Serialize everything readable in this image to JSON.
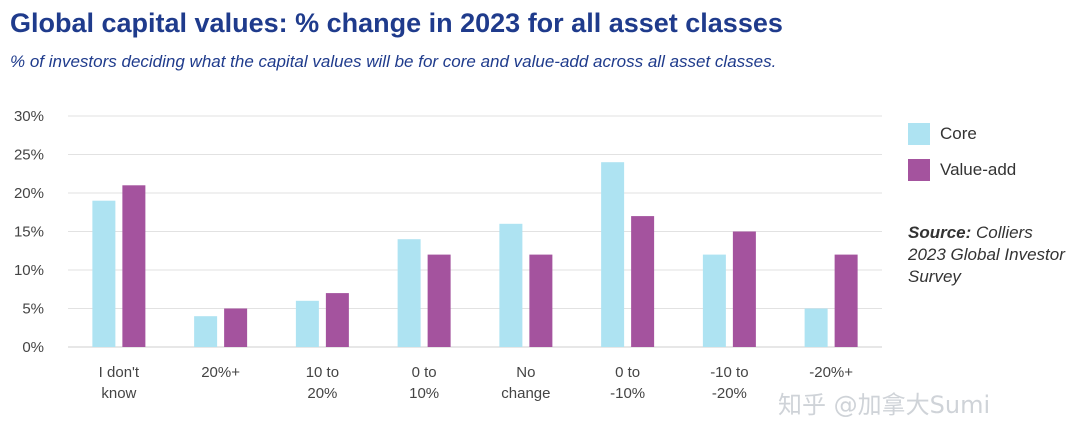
{
  "title": "Global capital values: % change in 2023 for all asset classes",
  "subtitle": "% of investors deciding what the capital values will be for core and value-add across all asset classes.",
  "source": {
    "label": "Source:",
    "text": "Colliers 2023 Global Investor Survey"
  },
  "watermark": "知乎 @加拿大Sumi",
  "colors": {
    "core": "#aee3f2",
    "value_add": "#a4539e",
    "grid": "#e2e2e2",
    "title": "#1f3b8c"
  },
  "chart_data": {
    "type": "bar",
    "categories": [
      [
        "I don't",
        "know"
      ],
      [
        "20%+"
      ],
      [
        "10 to",
        "20%"
      ],
      [
        "0 to",
        "10%"
      ],
      [
        "No",
        "change"
      ],
      [
        "0 to",
        "-10%"
      ],
      [
        "-10 to",
        "-20%"
      ],
      [
        "-20%+"
      ]
    ],
    "series": [
      {
        "name": "Core",
        "values": [
          19,
          4,
          6,
          14,
          16,
          24,
          12,
          5
        ]
      },
      {
        "name": "Value-add",
        "values": [
          21,
          5,
          7,
          12,
          12,
          17,
          15,
          12
        ]
      }
    ],
    "y_ticks": [
      "0%",
      "5%",
      "10%",
      "15%",
      "20%",
      "25%",
      "30%"
    ],
    "ylim": [
      0,
      30
    ],
    "grid": true,
    "legend_position": "right"
  }
}
